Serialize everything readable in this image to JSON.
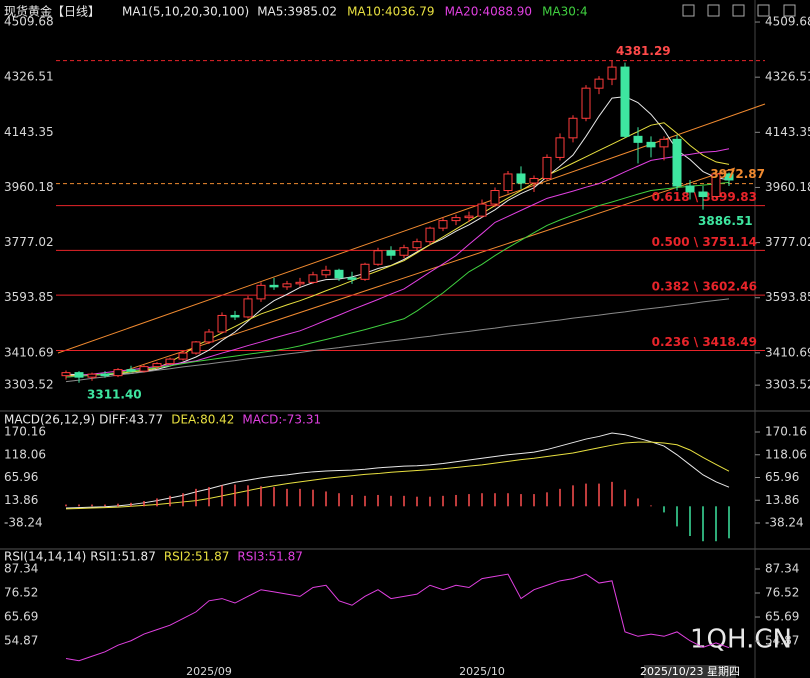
{
  "chart_data": [
    {
      "type": "candlestick",
      "title": "现货黄金【日线】",
      "indicator": "MA1(5,10,20,30,100)",
      "categories": [
        null,
        null,
        null,
        null,
        null,
        null,
        null,
        null,
        null,
        null,
        null,
        "2025/09",
        null,
        null,
        null,
        null,
        null,
        null,
        null,
        null,
        null,
        null,
        null,
        null,
        null,
        null,
        null,
        null,
        null,
        null,
        null,
        null,
        "2025/10",
        null,
        null,
        null,
        null,
        null,
        null,
        null,
        null,
        null,
        null,
        null,
        null,
        null,
        null,
        null,
        null,
        null,
        null,
        null
      ],
      "cursor_label": "2025/10/23 星期四",
      "up_color": "#ff3b3b",
      "down_color": "#3ee6a0",
      "open": [
        3335,
        3345,
        3330,
        3340,
        3335,
        3355,
        3350,
        3365,
        3375,
        3390,
        3410,
        3447,
        3480,
        3535,
        3530,
        3590,
        3635,
        3630,
        3640,
        3645,
        3670,
        3685,
        3660,
        3655,
        3705,
        3750,
        3735,
        3760,
        3780,
        3825,
        3850,
        3860,
        3865,
        3905,
        3950,
        4005,
        3975,
        3990,
        4060,
        4125,
        4190,
        4290,
        4320,
        4360,
        4130,
        4110,
        4095,
        4120,
        3965,
        3945,
        3930,
        4005
      ],
      "high": [
        3352,
        3350,
        3345,
        3350,
        3360,
        3368,
        3370,
        3380,
        3395,
        3415,
        3450,
        3490,
        3545,
        3550,
        3600,
        3645,
        3660,
        3650,
        3660,
        3680,
        3700,
        3690,
        3680,
        3710,
        3760,
        3765,
        3770,
        3790,
        3830,
        3860,
        3870,
        3880,
        3920,
        3960,
        4015,
        4030,
        4000,
        4070,
        4140,
        4200,
        4300,
        4330,
        4381.29,
        4375,
        4160,
        4130,
        4130,
        4135,
        3985,
        3965,
        4020,
        4010
      ],
      "low": [
        3322,
        3311.4,
        3318,
        3328,
        3330,
        3345,
        3345,
        3358,
        3370,
        3385,
        3405,
        3440,
        3475,
        3520,
        3525,
        3580,
        3620,
        3620,
        3630,
        3640,
        3660,
        3650,
        3640,
        3650,
        3700,
        3720,
        3725,
        3750,
        3770,
        3815,
        3835,
        3845,
        3860,
        3895,
        3940,
        3955,
        3945,
        3985,
        4050,
        4110,
        4180,
        4270,
        4300,
        4125,
        4040,
        4060,
        4050,
        3950,
        3920,
        3886.51,
        3925,
        3965
      ],
      "close": [
        3345,
        3330,
        3340,
        3335,
        3355,
        3350,
        3365,
        3375,
        3390,
        3410,
        3447,
        3480,
        3535,
        3530,
        3590,
        3635,
        3630,
        3640,
        3645,
        3670,
        3685,
        3660,
        3655,
        3705,
        3750,
        3735,
        3760,
        3780,
        3825,
        3850,
        3860,
        3865,
        3905,
        3950,
        4005,
        3975,
        3990,
        4060,
        4125,
        4190,
        4290,
        4320,
        4360,
        4130,
        4110,
        4095,
        4120,
        3965,
        3945,
        3930,
        4005,
        3985
      ],
      "series": [
        {
          "name": "MA5:3985.02",
          "color": "#e8e8e8",
          "values": [
            3340,
            3338,
            3338,
            3338,
            3341,
            3342,
            3349,
            3356,
            3367,
            3380,
            3397,
            3420,
            3452,
            3480,
            3516,
            3554,
            3584,
            3605,
            3628,
            3644,
            3654,
            3656,
            3663,
            3675,
            3691,
            3701,
            3721,
            3746,
            3770,
            3790,
            3815,
            3836,
            3861,
            3886,
            3917,
            3940,
            3959,
            3996,
            4031,
            4068,
            4130,
            4197,
            4257,
            4262,
            4242,
            4203,
            4151,
            4084,
            4053,
            4013,
            3993,
            3985.02
          ]
        },
        {
          "name": "MA10:4036.79",
          "color": "#e8e040",
          "values": [
            3335,
            3336,
            3338,
            3340,
            3343,
            3347,
            3352,
            3360,
            3380,
            3405,
            3434,
            3455,
            3477,
            3498,
            3520,
            3540,
            3555,
            3570,
            3584,
            3600,
            3617,
            3633,
            3650,
            3667,
            3683,
            3700,
            3717,
            3743,
            3770,
            3796,
            3822,
            3848,
            3874,
            3900,
            3925,
            3950,
            3975,
            4000,
            4020,
            4041,
            4062,
            4083,
            4104,
            4125,
            4146,
            4167,
            4175,
            4140,
            4100,
            4067,
            4045,
            4036.79
          ]
        },
        {
          "name": "MA20:4088.90",
          "color": "#e040e0",
          "values": [
            3330,
            3335,
            3340,
            3345,
            3350,
            3355,
            3360,
            3366,
            3372,
            3378,
            3384,
            3397,
            3410,
            3422,
            3435,
            3447,
            3460,
            3472,
            3484,
            3501,
            3519,
            3536,
            3554,
            3571,
            3588,
            3606,
            3623,
            3651,
            3679,
            3706,
            3734,
            3771,
            3807,
            3844,
            3864,
            3884,
            3904,
            3924,
            3936,
            3948,
            3961,
            3973,
            3992,
            4012,
            4031,
            4050,
            4057,
            4064,
            4070,
            4077,
            4080,
            4088.9
          ]
        },
        {
          "name": "MA30:4",
          "color": "#40d040",
          "values": [
            3330,
            3333,
            3336,
            3340,
            3345,
            3350,
            3356,
            3362,
            3368,
            3375,
            3382,
            3388,
            3394,
            3400,
            3406,
            3412,
            3418,
            3425,
            3434,
            3445,
            3455,
            3466,
            3477,
            3488,
            3500,
            3512,
            3524,
            3550,
            3580,
            3610,
            3645,
            3680,
            3705,
            3734,
            3760,
            3785,
            3810,
            3834,
            3852,
            3868,
            3884,
            3900,
            3912,
            3925,
            3938,
            3950,
            3955,
            3960,
            3964,
            3968,
            3972,
            3977
          ]
        },
        {
          "color": "#8a8a8a",
          "values": [
            3315,
            3320,
            3326,
            3331,
            3337,
            3342,
            3347,
            3353,
            3358,
            3364,
            3369,
            3374,
            3380,
            3385,
            3391,
            3396,
            3401,
            3407,
            3412,
            3418,
            3423,
            3428,
            3434,
            3439,
            3445,
            3450,
            3455,
            3461,
            3466,
            3472,
            3477,
            3482,
            3488,
            3493,
            3499,
            3504,
            3509,
            3515,
            3520,
            3526,
            3531,
            3536,
            3542,
            3547,
            3553,
            3558,
            3563,
            3569,
            3574,
            3580,
            3585,
            3590
          ]
        }
      ],
      "ylim": [
        3220.9,
        4556.3
      ],
      "yticks": [
        4509.68,
        4326.51,
        4143.35,
        3960.18,
        3777.02,
        3593.85,
        3410.69,
        3303.52
      ],
      "high_mark": 4381.29,
      "low_mark": {
        "value": 3311.4,
        "label": "3311.40"
      },
      "recent_low_mark": 3886.51,
      "last_price": 3972.87,
      "fib_color": "#e8242a",
      "fib_levels": [
        {
          "value": 3899.83,
          "label": "0.618 \\ 3899.83"
        },
        {
          "value": 3751.14,
          "label": "0.500 \\ 3751.14"
        },
        {
          "value": 3602.46,
          "label": "0.382 \\ 3602.46"
        },
        {
          "value": 3418.49,
          "label": "0.236 \\ 3418.49"
        }
      ]
    },
    {
      "type": "macd",
      "title": "MACD(26,12,9)",
      "series": [
        {
          "name": "DIFF:43.77",
          "color": "#e8e8e8",
          "values": [
            -4,
            -3,
            -2,
            -1,
            1,
            4,
            8,
            13,
            19,
            25,
            33,
            40,
            48,
            55,
            60,
            65,
            69,
            72,
            76,
            79,
            81,
            82,
            83,
            85,
            88,
            90,
            92,
            93,
            95,
            98,
            102,
            106,
            110,
            114,
            118,
            121,
            124,
            130,
            138,
            146,
            154,
            160,
            168,
            164,
            156,
            148,
            138,
            118,
            95,
            72,
            56,
            43.77
          ]
        },
        {
          "name": "DEA:80.42",
          "color": "#e8e040",
          "values": [
            -6,
            -5,
            -4,
            -3,
            -2,
            0,
            2,
            4,
            7,
            10,
            13,
            18,
            24,
            30,
            36,
            42,
            47,
            52,
            56,
            60,
            64,
            67,
            70,
            73,
            75,
            78,
            80,
            82,
            84,
            86,
            89,
            92,
            95,
            99,
            103,
            107,
            110,
            114,
            118,
            122,
            128,
            134,
            140,
            145,
            147,
            147,
            145,
            141,
            129,
            112,
            96,
            80.42
          ]
        },
        {
          "name": "MACD:-73.31",
          "color": "#e040e0",
          "histogram": true,
          "up_color": "#ff5050",
          "down_color": "#3ee6a0",
          "values": [
            4,
            4,
            4,
            4,
            6,
            8,
            12,
            18,
            24,
            30,
            40,
            44,
            48,
            50,
            48,
            46,
            44,
            40,
            40,
            38,
            34,
            30,
            26,
            24,
            26,
            24,
            24,
            22,
            22,
            24,
            26,
            28,
            30,
            30,
            30,
            28,
            28,
            32,
            40,
            48,
            52,
            52,
            56,
            38,
            18,
            2,
            -14,
            -46,
            -68,
            -80,
            -80,
            -73.31
          ]
        }
      ],
      "ylim": [
        -95.5,
        216
      ],
      "yticks": [
        170.16,
        118.06,
        65.96,
        13.86,
        -38.24
      ]
    },
    {
      "type": "rsi",
      "title": "RSI(14,14,14)",
      "series": [
        {
          "name": "RSI1:51.87",
          "color": "#e8e8e8"
        },
        {
          "name": "RSI2:51.87",
          "color": "#e8e040"
        },
        {
          "name": "RSI3:51.87",
          "color": "#e040e0",
          "values": [
            47,
            46,
            48,
            50,
            53,
            55,
            58,
            60,
            62,
            65,
            68,
            73,
            74,
            72,
            75,
            78,
            77,
            76,
            75,
            79,
            80,
            73,
            71,
            75,
            78,
            74,
            75,
            76,
            80,
            78,
            80,
            79,
            83,
            84,
            85,
            74,
            78,
            80,
            82,
            83,
            85,
            81,
            82,
            59,
            57,
            58,
            57,
            59,
            55,
            52,
            54,
            51.87
          ]
        }
      ],
      "ylim": [
        38.2,
        95.9
      ],
      "yticks": [
        87.34,
        76.52,
        65.69,
        54.87
      ]
    }
  ],
  "watermark": "1QH.CN"
}
